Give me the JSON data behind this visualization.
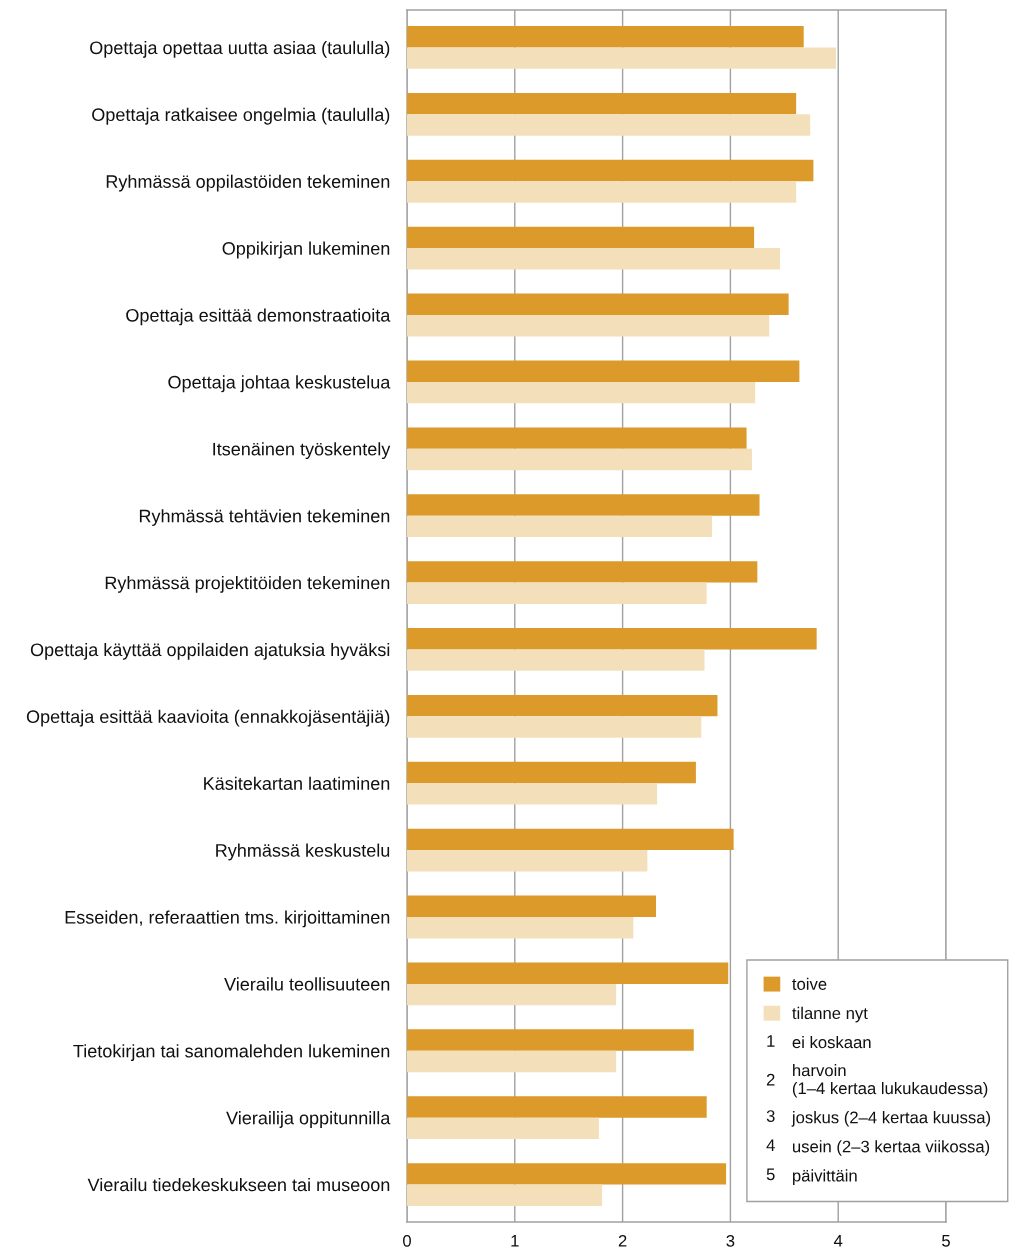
{
  "chart_data": {
    "type": "bar",
    "orientation": "horizontal",
    "categories": [
      "Opettaja opettaa uutta asiaa (taululla)",
      "Opettaja ratkaisee ongelmia (taululla)",
      "Ryhmässä oppilastöiden tekeminen",
      "Oppikirjan lukeminen",
      "Opettaja esittää demonstraatioita",
      "Opettaja johtaa keskustelua",
      "Itsenäinen työskentely",
      "Ryhmässä tehtävien tekeminen",
      "Ryhmässä projektitöiden tekeminen",
      "Opettaja käyttää oppilaiden ajatuksia hyväksi",
      "Opettaja esittää kaavioita (ennakkojäsentäjiä)",
      "Käsitekartan laatiminen",
      "Ryhmässä keskustelu",
      "Esseiden, referaattien tms. kirjoittaminen",
      "Vierailu teollisuuteen",
      "Tietokirjan tai sanomalehden lukeminen",
      "Vierailija oppitunnilla",
      "Vierailu tiedekeskukseen tai museoon"
    ],
    "series": [
      {
        "name": "toive",
        "color": "#db9a2a",
        "values": [
          3.68,
          3.61,
          3.77,
          3.22,
          3.54,
          3.64,
          3.15,
          3.27,
          3.25,
          3.8,
          2.88,
          2.68,
          3.03,
          2.31,
          2.98,
          2.66,
          2.78,
          2.96
        ]
      },
      {
        "name": "tilanne nyt",
        "color": "#f3e0ba",
        "values": [
          3.98,
          3.74,
          3.61,
          3.46,
          3.36,
          3.23,
          3.2,
          2.83,
          2.78,
          2.76,
          2.73,
          2.32,
          2.23,
          2.1,
          1.94,
          1.94,
          1.78,
          1.81
        ]
      }
    ],
    "xlim": [
      0,
      5
    ],
    "xticks": [
      0,
      1,
      2,
      3,
      4,
      5
    ],
    "grid": "x",
    "legend": "bottom right",
    "annotations": [
      "1 ei koskaan",
      "2 harvoin\n(1–4 kertaa lukukaudessa)",
      "3 joskus (2–4 kertaa kuussa)",
      "4 usein (2–3 kertaa viikossa)",
      "5 päivittäin"
    ]
  }
}
